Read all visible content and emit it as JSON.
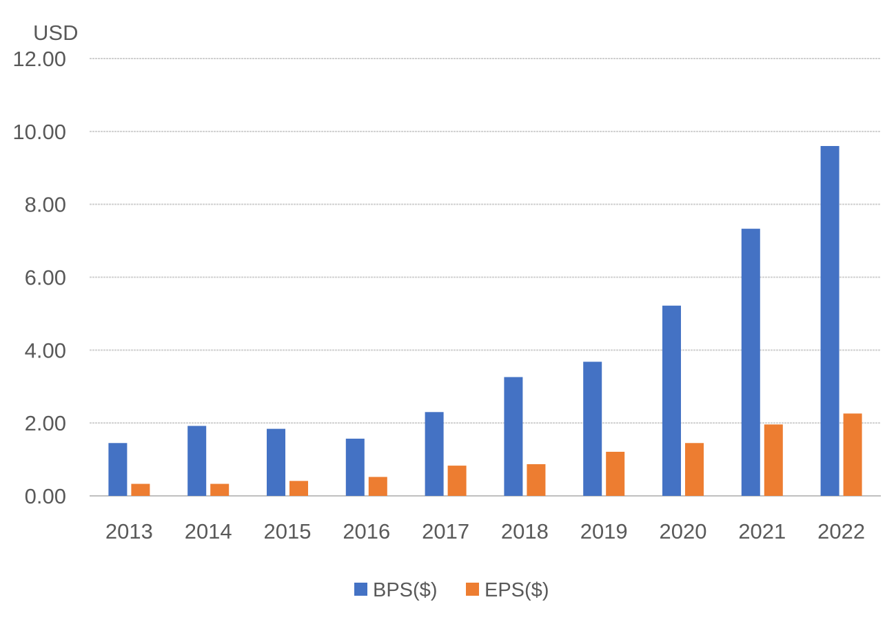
{
  "chart_data": {
    "type": "bar",
    "unit_label": "USD",
    "categories": [
      "2013",
      "2014",
      "2015",
      "2016",
      "2017",
      "2018",
      "2019",
      "2020",
      "2021",
      "2022"
    ],
    "series": [
      {
        "name": "BPS($)",
        "color": "#4472C4",
        "values": [
          1.45,
          1.92,
          1.84,
          1.57,
          2.3,
          3.26,
          3.68,
          5.22,
          7.33,
          9.6
        ]
      },
      {
        "name": "EPS($)",
        "color": "#ED7D31",
        "values": [
          0.33,
          0.33,
          0.41,
          0.52,
          0.83,
          0.87,
          1.21,
          1.45,
          1.96,
          2.26
        ]
      }
    ],
    "ylim": [
      0,
      12
    ],
    "yticks": [
      "0.00",
      "2.00",
      "4.00",
      "6.00",
      "8.00",
      "10.00",
      "12.00"
    ],
    "grid": true,
    "legend_position": "bottom"
  }
}
